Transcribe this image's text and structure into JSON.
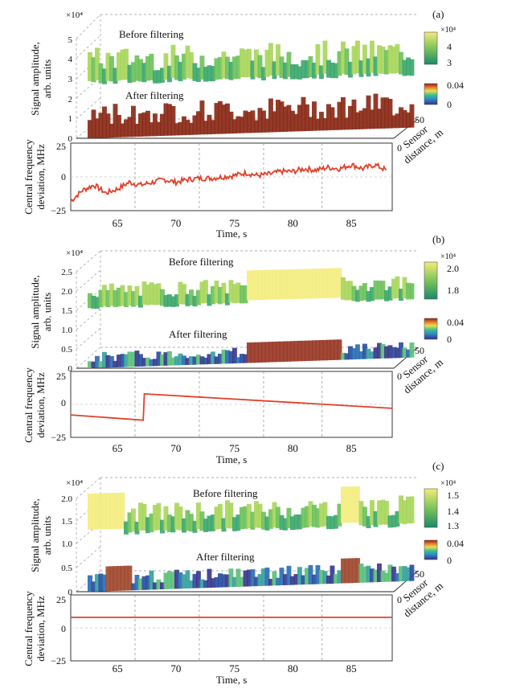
{
  "chart_data": [
    {
      "panel": "(a)",
      "type": "surface3d+line",
      "surface_ylabel": [
        "Signal amplitude,",
        "arb. units"
      ],
      "surface_exponent": "×10⁴",
      "surface_yticks": [
        "0",
        "1",
        "2",
        "3",
        "4",
        "5"
      ],
      "before_label": "Before filtering",
      "after_label": "After filtering",
      "depth_ticks": [
        "0",
        "50"
      ],
      "depth_label": [
        "Sensor",
        "distance, m"
      ],
      "colorbar_top": {
        "ticks": [
          "3",
          "4"
        ],
        "exponent": "×10⁴"
      },
      "colorbar_bottom": {
        "ticks": [
          "0",
          "0.04"
        ]
      },
      "line_ylabel": [
        "Central frequency",
        "deviation, MHz"
      ],
      "line_yticks": [
        "−25",
        "0",
        "25"
      ],
      "line_ylim": [
        -25,
        25
      ],
      "xlabel": "Time, s",
      "xticks": [
        "65",
        "70",
        "75",
        "80",
        "85"
      ],
      "xlim": [
        61,
        88.5
      ],
      "line_x": [
        61,
        62,
        63,
        64,
        65,
        66,
        67,
        68,
        69,
        70,
        71,
        72,
        73,
        74,
        75,
        76,
        77,
        78,
        79,
        80,
        81,
        82,
        83,
        84,
        85,
        86,
        87,
        88
      ],
      "line_y": [
        -18,
        -10,
        -6,
        -12,
        -9,
        -4,
        -6,
        -4,
        -2,
        -4,
        -2,
        -1,
        -1,
        0,
        1,
        3,
        1,
        2,
        4,
        4,
        6,
        5,
        7,
        6,
        9,
        6,
        9,
        5
      ],
      "before_range": [
        3.3,
        4.6
      ],
      "after_range": [
        0.2,
        1.6
      ]
    },
    {
      "panel": "(b)",
      "type": "surface3d+line",
      "surface_ylabel": [
        "Signal amplitude,",
        "arb. units"
      ],
      "surface_exponent": "×10⁴",
      "surface_yticks": [
        "0",
        "0.5",
        "1.0",
        "1.5",
        "2.0",
        "2.5"
      ],
      "before_label": "Before filtering",
      "after_label": "After filtering",
      "depth_ticks": [
        "0",
        "50"
      ],
      "depth_label": [
        "Sensor",
        "distance, m"
      ],
      "colorbar_top": {
        "ticks": [
          "1.8",
          "2.0"
        ],
        "exponent": "×10⁴"
      },
      "colorbar_bottom": {
        "ticks": [
          "0",
          "0.04"
        ]
      },
      "line_ylabel": [
        "Central frequency",
        "deviation, MHz"
      ],
      "line_yticks": [
        "−25",
        "0",
        "25"
      ],
      "line_ylim": [
        -25,
        25
      ],
      "xlabel": "Time, s",
      "xticks": [
        "65",
        "70",
        "75",
        "80",
        "85"
      ],
      "xlim": [
        61,
        88.5
      ],
      "line_x": [
        61,
        67.2,
        67.3,
        88.5
      ],
      "line_y": [
        -8,
        -12,
        8,
        -3
      ],
      "before_range": [
        1.6,
        2.0
      ],
      "after_range": [
        0.0,
        0.3
      ]
    },
    {
      "panel": "(c)",
      "type": "surface3d+line",
      "surface_ylabel": [
        "Signal amplitude,",
        "arb. units"
      ],
      "surface_exponent": "×10⁴",
      "surface_yticks": [
        "0",
        "0.5",
        "1.0",
        "1.5",
        "2.0"
      ],
      "before_label": "Before filtering",
      "after_label": "After filtering",
      "depth_ticks": [
        "0",
        "50"
      ],
      "depth_label": [
        "Sensor",
        "distance, m"
      ],
      "colorbar_top": {
        "ticks": [
          "1.3",
          "1.4",
          "1.5"
        ],
        "exponent": "×10⁴"
      },
      "colorbar_bottom": {
        "ticks": [
          "0",
          "0.04"
        ]
      },
      "line_ylabel": [
        "Central frequency",
        "deviation, MHz"
      ],
      "line_yticks": [
        "−25",
        "0",
        "25"
      ],
      "line_ylim": [
        -25,
        25
      ],
      "xlabel": "Time, s",
      "xticks": [
        "65",
        "70",
        "75",
        "80",
        "85"
      ],
      "xlim": [
        61,
        88.5
      ],
      "line_x": [
        61,
        88.5
      ],
      "line_y": [
        8,
        8
      ],
      "before_range": [
        1.4,
        1.7
      ],
      "after_range": [
        0.0,
        0.2
      ]
    }
  ]
}
